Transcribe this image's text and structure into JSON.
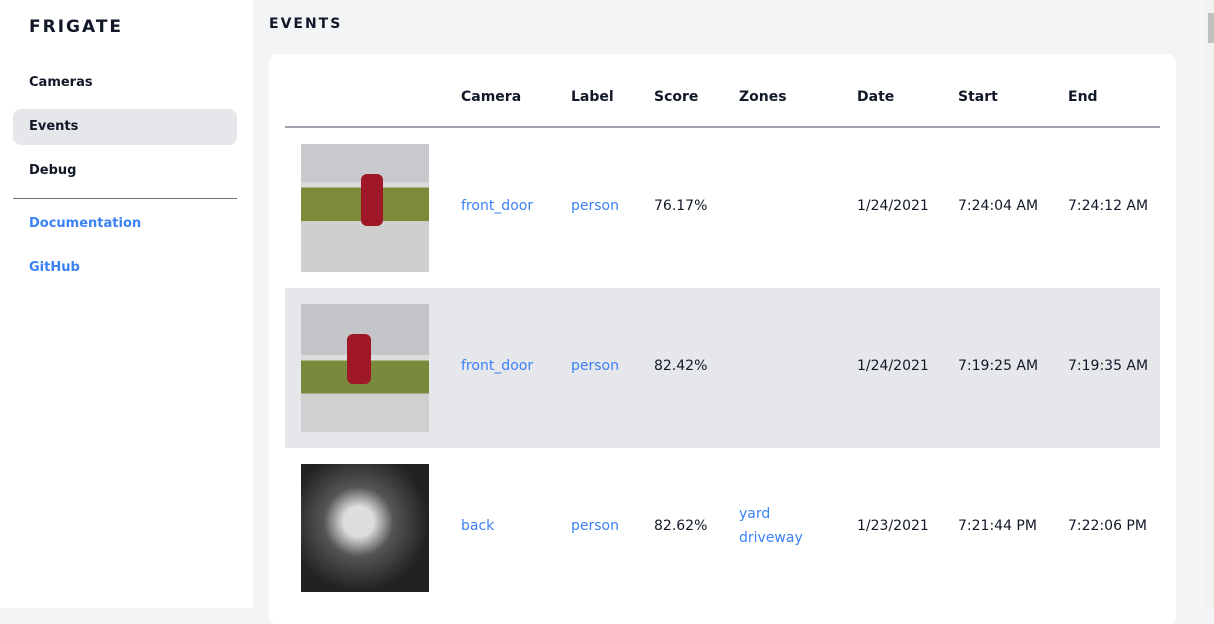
{
  "sidebar": {
    "brand": "FRIGATE",
    "items": [
      {
        "label": "Cameras"
      },
      {
        "label": "Events"
      },
      {
        "label": "Debug"
      }
    ],
    "links": [
      {
        "label": "Documentation"
      },
      {
        "label": "GitHub"
      }
    ]
  },
  "page": {
    "title": "EVENTS"
  },
  "table": {
    "headers": [
      "Camera",
      "Label",
      "Score",
      "Zones",
      "Date",
      "Start",
      "End"
    ],
    "rows": [
      {
        "camera": "front_door",
        "label": "person",
        "score": "76.17%",
        "zones": [
          "",
          ""
        ],
        "date": "1/24/2021",
        "start": "7:24:04 AM",
        "end": "7:24:12 AM"
      },
      {
        "camera": "front_door",
        "label": "person",
        "score": "82.42%",
        "zones": [
          "",
          ""
        ],
        "date": "1/24/2021",
        "start": "7:19:25 AM",
        "end": "7:19:35 AM"
      },
      {
        "camera": "back",
        "label": "person",
        "score": "82.62%",
        "zones": [
          "yard",
          "driveway"
        ],
        "date": "1/23/2021",
        "start": "7:21:44 PM",
        "end": "7:22:06 PM"
      }
    ]
  },
  "colors": {
    "accent": "#3b82f6",
    "active_bg": "#e5e7eb"
  }
}
